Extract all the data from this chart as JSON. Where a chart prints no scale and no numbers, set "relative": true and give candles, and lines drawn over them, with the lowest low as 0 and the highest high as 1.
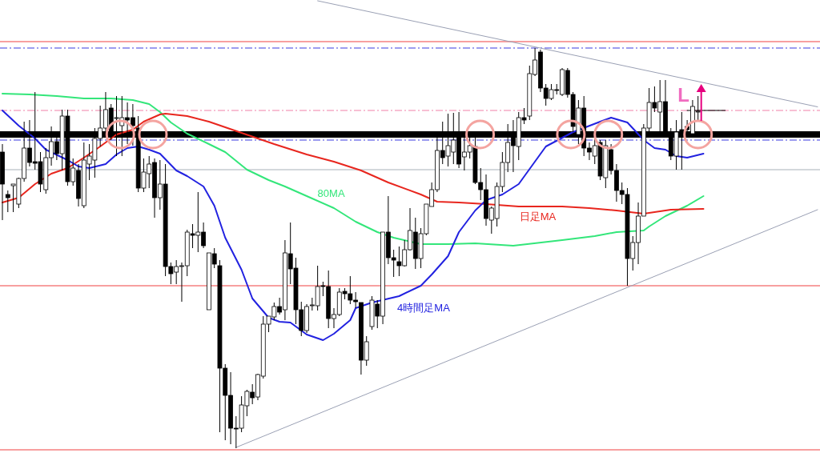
{
  "chart_data": {
    "type": "candlestick",
    "relative": true,
    "categories": [
      null,
      null,
      null,
      null,
      null,
      null,
      null,
      null,
      null,
      null,
      null,
      null,
      null,
      null,
      null,
      null,
      null,
      null,
      null,
      null,
      null,
      null,
      null,
      null,
      null,
      null,
      null,
      null,
      null,
      null,
      null,
      null,
      null,
      null,
      null,
      null,
      null,
      null,
      null,
      null,
      null,
      null,
      null,
      null,
      null,
      null,
      null,
      null,
      null,
      null,
      null,
      null,
      null,
      null,
      null,
      null,
      null,
      null,
      null,
      null,
      null,
      null,
      null,
      null,
      null,
      null,
      null,
      null,
      null,
      null,
      null,
      null,
      null,
      null,
      null,
      null,
      null,
      null,
      null,
      null,
      null,
      null,
      null,
      null,
      null,
      null,
      null,
      null,
      null,
      null,
      null,
      null,
      null,
      null,
      null,
      null,
      null,
      null,
      null,
      null,
      null,
      null,
      null,
      null,
      null,
      null,
      null,
      null,
      null,
      null,
      null,
      null,
      null,
      null,
      null,
      null,
      null,
      null,
      null,
      null,
      null,
      null,
      null,
      null,
      null,
      null,
      null,
      null,
      null,
      null,
      null,
      null,
      null,
      null,
      null,
      null,
      null,
      null,
      null,
      null,
      null,
      null,
      null,
      null,
      null,
      null,
      null,
      null,
      null,
      null,
      null
    ],
    "ohlc": [
      [
        0.74,
        0.76,
        0.57,
        0.66
      ],
      [
        0.634,
        0.644,
        0.59,
        0.626
      ],
      [
        0.656,
        0.66,
        0.59,
        0.66
      ],
      [
        0.61,
        0.676,
        0.6,
        0.674
      ],
      [
        0.674,
        0.816,
        0.666,
        0.75
      ],
      [
        0.75,
        0.82,
        0.704,
        0.714
      ],
      [
        0.716,
        0.89,
        0.696,
        0.712
      ],
      [
        0.716,
        0.74,
        0.64,
        0.66
      ],
      [
        0.646,
        0.75,
        0.636,
        0.726
      ],
      [
        0.726,
        0.804,
        0.706,
        0.766
      ],
      [
        0.766,
        0.776,
        0.72,
        0.736
      ],
      [
        0.736,
        0.846,
        0.694,
        0.83
      ],
      [
        0.83,
        0.846,
        0.656,
        0.666
      ],
      [
        0.666,
        0.724,
        0.656,
        0.7
      ],
      [
        0.694,
        0.71,
        0.604,
        0.624
      ],
      [
        0.606,
        0.764,
        0.6,
        0.72
      ],
      [
        0.71,
        0.76,
        0.67,
        0.73
      ],
      [
        0.72,
        0.8,
        0.676,
        0.774
      ],
      [
        0.774,
        0.856,
        0.754,
        0.8
      ],
      [
        0.8,
        0.89,
        0.784,
        0.846
      ],
      [
        0.85,
        0.86,
        0.77,
        0.78
      ],
      [
        0.824,
        0.88,
        0.73,
        0.826
      ],
      [
        0.806,
        0.88,
        0.73,
        0.826
      ],
      [
        0.826,
        0.864,
        0.76,
        0.82
      ],
      [
        0.826,
        0.86,
        0.756,
        0.806
      ],
      [
        0.8,
        0.83,
        0.64,
        0.65
      ],
      [
        0.65,
        0.724,
        0.64,
        0.69
      ],
      [
        0.686,
        0.73,
        0.65,
        0.71
      ],
      [
        0.714,
        0.724,
        0.576,
        0.626
      ],
      [
        0.626,
        0.72,
        0.596,
        0.66
      ],
      [
        0.66,
        0.71,
        0.43,
        0.454
      ],
      [
        0.454,
        0.464,
        0.41,
        0.436
      ],
      [
        0.44,
        0.47,
        0.41,
        0.454
      ],
      [
        0.454,
        0.464,
        0.366,
        0.456
      ],
      [
        0.456,
        0.546,
        0.43,
        0.54
      ],
      [
        0.536,
        0.56,
        0.5,
        0.532
      ],
      [
        0.532,
        0.64,
        0.49,
        0.54
      ],
      [
        0.54,
        0.564,
        0.5,
        0.506
      ],
      [
        0.346,
        0.488,
        0.346,
        0.488
      ],
      [
        0.486,
        0.5,
        0.45,
        0.46
      ],
      [
        0.456,
        0.47,
        0.04,
        0.2
      ],
      [
        0.2,
        0.21,
        0.02,
        0.132
      ],
      [
        0.132,
        0.19,
        0.01,
        0.05
      ],
      [
        0.05,
        0.08,
        0,
        0.048
      ],
      [
        0.05,
        0.13,
        0.04,
        0.108
      ],
      [
        0.106,
        0.146,
        0.08,
        0.142
      ],
      [
        0.14,
        0.16,
        0.11,
        0.126
      ],
      [
        0.128,
        0.186,
        0.12,
        0.184
      ],
      [
        0.18,
        0.33,
        0.174,
        0.31
      ],
      [
        0.31,
        0.33,
        0.29,
        0.33
      ],
      [
        0.328,
        0.364,
        0.32,
        0.354
      ],
      [
        0.354,
        0.376,
        0.334,
        0.34
      ],
      [
        0.346,
        0.52,
        0.32,
        0.488
      ],
      [
        0.486,
        0.564,
        0.41,
        0.448
      ],
      [
        0.45,
        0.476,
        0.31,
        0.346
      ],
      [
        0.346,
        0.366,
        0.28,
        0.294
      ],
      [
        0.294,
        0.36,
        0.288,
        0.354
      ],
      [
        0.356,
        0.376,
        0.344,
        0.358
      ],
      [
        0.356,
        0.456,
        0.344,
        0.404
      ],
      [
        0.406,
        0.416,
        0.38,
        0.404
      ],
      [
        0.404,
        0.444,
        0.3,
        0.324
      ],
      [
        0.324,
        0.35,
        0.3,
        0.334
      ],
      [
        0.334,
        0.4,
        0.33,
        0.39
      ],
      [
        0.392,
        0.4,
        0.372,
        0.386
      ],
      [
        0.386,
        0.43,
        0.36,
        0.37
      ],
      [
        0.37,
        0.39,
        0.35,
        0.366
      ],
      [
        0.364,
        0.364,
        0.184,
        0.22
      ],
      [
        0.22,
        0.28,
        0.206,
        0.266
      ],
      [
        0.304,
        0.38,
        0.296,
        0.37
      ],
      [
        0.36,
        0.37,
        0.3,
        0.33
      ],
      [
        0.33,
        0.54,
        0.31,
        0.54
      ],
      [
        0.54,
        0.63,
        0.46,
        0.476
      ],
      [
        0.476,
        0.496,
        0.428,
        0.47
      ],
      [
        0.466,
        0.504,
        0.43,
        0.456
      ],
      [
        0.456,
        0.52,
        0.454,
        0.496
      ],
      [
        0.496,
        0.6,
        0.494,
        0.544
      ],
      [
        0.54,
        0.576,
        0.448,
        0.474
      ],
      [
        0.474,
        0.55,
        0.45,
        0.536
      ],
      [
        0.536,
        0.61,
        0.532,
        0.61
      ],
      [
        0.604,
        0.664,
        0.604,
        0.646
      ],
      [
        0.646,
        0.776,
        0.64,
        0.744
      ],
      [
        0.744,
        0.816,
        0.71,
        0.726
      ],
      [
        0.73,
        0.836,
        0.704,
        0.756
      ],
      [
        0.74,
        0.838,
        0.71,
        0.77
      ],
      [
        0.78,
        0.84,
        0.7,
        0.71
      ],
      [
        0.728,
        0.78,
        0.694,
        0.74
      ],
      [
        0.74,
        0.776,
        0.724,
        0.756
      ],
      [
        0.754,
        0.776,
        0.66,
        0.664
      ],
      [
        0.664,
        0.7,
        0.62,
        0.646
      ],
      [
        0.646,
        0.684,
        0.556,
        0.574
      ],
      [
        0.57,
        0.604,
        0.536,
        0.6
      ],
      [
        0.574,
        0.664,
        0.554,
        0.654
      ],
      [
        0.654,
        0.74,
        0.64,
        0.714
      ],
      [
        0.714,
        0.81,
        0.69,
        0.764
      ],
      [
        0.784,
        0.82,
        0.69,
        0.756
      ],
      [
        0.754,
        0.84,
        0.72,
        0.826
      ],
      [
        0.826,
        0.85,
        0.81,
        0.82
      ],
      [
        0.83,
        0.956,
        0.82,
        0.936
      ],
      [
        0.934,
        1,
        0.93,
        0.97
      ],
      [
        0.99,
        0.996,
        0.89,
        0.9
      ],
      [
        0.9,
        0.91,
        0.856,
        0.874
      ],
      [
        0.874,
        0.91,
        0.87,
        0.896
      ],
      [
        0.896,
        0.91,
        0.884,
        0.894
      ],
      [
        0.884,
        0.95,
        0.88,
        0.946
      ],
      [
        0.944,
        0.95,
        0.876,
        0.884
      ],
      [
        0.884,
        0.89,
        0.79,
        0.804
      ],
      [
        0.784,
        0.87,
        0.76,
        0.85
      ],
      [
        0.85,
        0.88,
        0.73,
        0.75
      ],
      [
        0.75,
        0.764,
        0.72,
        0.74
      ],
      [
        0.73,
        0.776,
        0.71,
        0.756
      ],
      [
        0.764,
        0.77,
        0.67,
        0.68
      ],
      [
        0.676,
        0.77,
        0.65,
        0.756
      ],
      [
        0.746,
        0.76,
        0.684,
        0.694
      ],
      [
        0.694,
        0.71,
        0.616,
        0.644
      ],
      [
        0.644,
        0.664,
        0.61,
        0.634
      ],
      [
        0.634,
        0.65,
        0.406,
        0.474
      ],
      [
        0.474,
        0.53,
        0.444,
        0.514
      ],
      [
        0.514,
        0.614,
        0.46,
        0.58
      ],
      [
        0.58,
        0.81,
        0.58,
        0.8
      ],
      [
        0.8,
        0.9,
        0.79,
        0.864
      ],
      [
        0.864,
        0.904,
        0.84,
        0.85
      ],
      [
        0.84,
        0.92,
        0.79,
        0.866
      ],
      [
        0.866,
        0.92,
        0.78,
        0.79
      ],
      [
        0.79,
        0.8,
        0.72,
        0.73
      ],
      [
        0.73,
        0.82,
        0.696,
        0.79
      ],
      [
        0.796,
        0.84,
        0.696,
        0.784
      ],
      [
        0.804,
        0.82,
        0.78,
        0.796
      ],
      [
        0.786,
        0.87,
        0.784,
        0.854
      ],
      [
        0.842,
        0.88,
        0.82,
        0.842
      ],
      null,
      null,
      null,
      null,
      null,
      null,
      null,
      null,
      null,
      null,
      null,
      null,
      null,
      null,
      null,
      null,
      null,
      null,
      null,
      null,
      null,
      null
    ],
    "series": [
      {
        "type": "line",
        "name": "80MA",
        "color": "#33e67a",
        "values": [
          0.886,
          null,
          null,
          null,
          null,
          0.884,
          null,
          null,
          null,
          null,
          0.88,
          null,
          null,
          null,
          null,
          0.874,
          null,
          null,
          null,
          null,
          0.874,
          null,
          null,
          null,
          0.87,
          null,
          null,
          0.86,
          null,
          0.84,
          null,
          0.814,
          null,
          null,
          0.786,
          null,
          null,
          null,
          0.76,
          null,
          null,
          0.74,
          null,
          null,
          null,
          0.696,
          null,
          null,
          null,
          0.67,
          null,
          null,
          0.654,
          null,
          null,
          null,
          0.63,
          null,
          null,
          null,
          null,
          0.6,
          null,
          null,
          null,
          0.566,
          null,
          null,
          null,
          0.54,
          null,
          null,
          0.526,
          null,
          null,
          null,
          null,
          0.51,
          null,
          null,
          null,
          null,
          0.51,
          null,
          null,
          null,
          null,
          0.512,
          null,
          null,
          null,
          null,
          null,
          null,
          0.506,
          null,
          null,
          null,
          null,
          null,
          null,
          null,
          null,
          0.52,
          null,
          null,
          null,
          null,
          null,
          0.53,
          null,
          null,
          null,
          0.54,
          null,
          null,
          null,
          null,
          0.544,
          0.554,
          null,
          null,
          0.58,
          null,
          null,
          null,
          0.606,
          null,
          null,
          0.63,
          null,
          null,
          null,
          null,
          null,
          null,
          null,
          null,
          null,
          null,
          null,
          null,
          null,
          null,
          null,
          null,
          null,
          null,
          null,
          null,
          null
        ]
      },
      {
        "type": "line",
        "name": "日足MA",
        "color": "#e8261e",
        "values": [
          0.614,
          null,
          null,
          0.626,
          null,
          null,
          0.66,
          null,
          null,
          0.686,
          null,
          null,
          0.7,
          null,
          null,
          0.726,
          null,
          null,
          0.754,
          null,
          null,
          0.784,
          null,
          null,
          0.796,
          null,
          0.816,
          null,
          null,
          0.834,
          0.836,
          null,
          null,
          null,
          0.83,
          null,
          null,
          null,
          0.816,
          null,
          null,
          null,
          null,
          null,
          null,
          null,
          null,
          null,
          null,
          null,
          0.76,
          null,
          null,
          null,
          null,
          null,
          0.734,
          null,
          null,
          null,
          null,
          0.716,
          null,
          null,
          null,
          null,
          0.694,
          null,
          null,
          null,
          null,
          0.664,
          null,
          null,
          null,
          null,
          null,
          0.634,
          null,
          null,
          0.616,
          null,
          null,
          null,
          0.614,
          null,
          null,
          null,
          null,
          0.61,
          null,
          null,
          null,
          null,
          null,
          0.604,
          null,
          null,
          null,
          null,
          null,
          null,
          null,
          0.604,
          null,
          null,
          null,
          null,
          0.6,
          null,
          null,
          null,
          null,
          0.594,
          null,
          null,
          null,
          null,
          0.586,
          null,
          null,
          null,
          null,
          0.596,
          null,
          null,
          null,
          null,
          null,
          0.598,
          null,
          null,
          null,
          null,
          null,
          null,
          null,
          null,
          null,
          null,
          null,
          null,
          null,
          null,
          null,
          null,
          null,
          null,
          null,
          null,
          null
        ]
      },
      {
        "type": "line",
        "name": "4時間足MA",
        "color": "#2222e0",
        "values": [
          0.844,
          null,
          null,
          0.806,
          null,
          null,
          0.774,
          null,
          0.746,
          null,
          null,
          null,
          0.72,
          null,
          0.704,
          null,
          0.7,
          null,
          null,
          0.71,
          null,
          0.734,
          null,
          0.75,
          null,
          0.754,
          null,
          0.746,
          null,
          0.736,
          null,
          null,
          0.694,
          null,
          0.68,
          null,
          null,
          0.654,
          null,
          0.606,
          null,
          0.526,
          null,
          null,
          0.446,
          null,
          0.374,
          null,
          null,
          0.326,
          null,
          0.316,
          null,
          0.314,
          null,
          null,
          0.284,
          null,
          null,
          0.27,
          null,
          0.286,
          null,
          null,
          0.32,
          0.35,
          null,
          null,
          0.364,
          null,
          null,
          null,
          null,
          0.38,
          null,
          null,
          null,
          0.406,
          null,
          0.434,
          null,
          null,
          0.48,
          null,
          0.54,
          null,
          null,
          0.594,
          null,
          0.62,
          null,
          null,
          0.634,
          null,
          null,
          0.66,
          null,
          null,
          null,
          null,
          0.754,
          null,
          null,
          null,
          null,
          0.79,
          null,
          null,
          null,
          null,
          0.816,
          null,
          0.826,
          null,
          null,
          0.814,
          null,
          null,
          0.77,
          null,
          0.75,
          null,
          0.746,
          null,
          0.73,
          null,
          0.726,
          null,
          null,
          0.736,
          null,
          null,
          null,
          null,
          null,
          null,
          null,
          null,
          null,
          null,
          null,
          null,
          null,
          null,
          null,
          null,
          null,
          null,
          null,
          null,
          null
        ]
      },
      {
        "type": "line",
        "color": "#9aa0b4",
        "values": [
          null,
          null,
          null,
          null,
          null,
          null,
          null,
          null,
          null,
          null,
          null,
          null,
          null,
          null,
          null,
          null,
          null,
          null,
          null,
          null,
          null,
          null,
          null,
          null,
          null,
          null,
          null,
          null,
          null,
          null,
          null,
          null,
          null,
          null,
          null,
          null,
          null,
          null,
          null,
          null,
          null,
          null,
          null,
          null,
          null,
          null,
          null,
          null,
          null,
          null,
          null,
          null,
          null,
          null,
          null,
          null,
          null,
          null,
          1.118,
          null,
          null,
          null,
          null,
          null,
          null,
          null,
          null,
          null,
          null,
          null,
          null,
          null,
          null,
          null,
          null,
          null,
          null,
          null,
          null,
          null,
          null,
          null,
          null,
          null,
          null,
          null,
          null,
          null,
          null,
          null,
          null,
          null,
          null,
          null,
          null,
          null,
          null,
          null,
          null,
          null,
          null,
          null,
          null,
          null,
          null,
          null,
          null,
          null,
          null,
          null,
          null,
          null,
          null,
          null,
          null,
          null,
          null,
          null,
          null,
          null,
          null,
          null,
          null,
          null,
          null,
          null,
          null,
          null,
          null,
          null,
          null,
          null,
          null,
          null,
          null,
          null,
          null,
          null,
          null,
          null,
          null,
          null,
          null,
          null,
          null,
          null,
          null,
          null,
          null,
          null,
          0.853
        ]
      },
      {
        "type": "line",
        "color": "#9aa0b4",
        "values": [
          null,
          null,
          null,
          null,
          null,
          null,
          null,
          null,
          null,
          null,
          null,
          null,
          null,
          null,
          null,
          null,
          null,
          null,
          null,
          null,
          null,
          null,
          null,
          null,
          null,
          null,
          null,
          null,
          null,
          null,
          null,
          null,
          null,
          null,
          null,
          null,
          null,
          null,
          null,
          null,
          null,
          null,
          null,
          0.002,
          null,
          null,
          null,
          null,
          null,
          null,
          null,
          null,
          null,
          null,
          null,
          null,
          null,
          null,
          null,
          null,
          null,
          null,
          null,
          null,
          null,
          null,
          null,
          null,
          null,
          null,
          null,
          null,
          null,
          null,
          null,
          null,
          null,
          null,
          null,
          null,
          null,
          null,
          null,
          null,
          null,
          null,
          null,
          null,
          null,
          null,
          null,
          null,
          null,
          null,
          null,
          null,
          null,
          null,
          null,
          null,
          null,
          null,
          null,
          null,
          null,
          null,
          null,
          null,
          null,
          null,
          null,
          null,
          null,
          null,
          null,
          null,
          null,
          null,
          null,
          null,
          null,
          null,
          null,
          null,
          null,
          null,
          null,
          null,
          null,
          null,
          null,
          null,
          null,
          null,
          null,
          null,
          null,
          null,
          null,
          null,
          null,
          null,
          null,
          null,
          null,
          null,
          null,
          null,
          null,
          null,
          0.596
        ]
      },
      {
        "type": "line",
        "color": "#000000",
        "values": [
          null,
          null,
          null,
          null,
          null,
          null,
          null,
          null,
          null,
          null,
          null,
          null,
          null,
          null,
          null,
          null,
          null,
          null,
          null,
          null,
          null,
          null,
          null,
          null,
          null,
          null,
          null,
          null,
          null,
          null,
          null,
          null,
          null,
          null,
          null,
          null,
          null,
          null,
          null,
          null,
          null,
          null,
          null,
          null,
          null,
          null,
          null,
          null,
          null,
          null,
          null,
          null,
          null,
          null,
          null,
          null,
          null,
          null,
          null,
          null,
          null,
          null,
          null,
          null,
          null,
          null,
          null,
          null,
          null,
          null,
          null,
          null,
          null,
          null,
          null,
          null,
          null,
          null,
          null,
          null,
          null,
          null,
          null,
          null,
          null,
          null,
          null,
          null,
          null,
          null,
          null,
          null,
          null,
          null,
          null,
          null,
          null,
          null,
          null,
          null,
          null,
          null,
          null,
          null,
          null,
          null,
          null,
          null,
          null,
          null,
          null,
          null,
          null,
          null,
          null,
          null,
          null,
          null,
          null,
          null,
          null,
          null,
          null,
          null,
          null,
          null,
          0.844,
          null,
          null,
          null,
          null,
          null,
          null,
          0.844,
          null,
          null,
          null,
          null,
          null,
          null,
          null,
          null,
          null,
          null,
          null,
          null,
          null,
          null,
          null,
          null,
          null
        ]
      }
    ],
    "ref_lines": [
      {
        "axis": "y",
        "value": 1.016,
        "color": "#f04040",
        "line_style": "solid"
      },
      {
        "axis": "y",
        "value": 0.406,
        "color": "#f04040",
        "line_style": "solid"
      },
      {
        "axis": "y",
        "value": -0.004,
        "color": "#f04040",
        "line_style": "solid"
      },
      {
        "axis": "y",
        "value": 1.0,
        "color": "#3a3ae0",
        "line_style": "dashed"
      },
      {
        "axis": "y",
        "value": 0.77,
        "color": "#3a3ae0",
        "line_style": "dashed"
      },
      {
        "axis": "y",
        "value": 0.844,
        "color": "#f080a8",
        "line_style": "dashed"
      },
      {
        "axis": "y",
        "value": 0.696,
        "color": "#a8b0b8",
        "line_style": "solid"
      }
    ],
    "bands": [
      {
        "axis": "y",
        "from": 0.776,
        "to": 0.792,
        "color": "#000000"
      }
    ],
    "annotations": [
      "L"
    ]
  }
}
